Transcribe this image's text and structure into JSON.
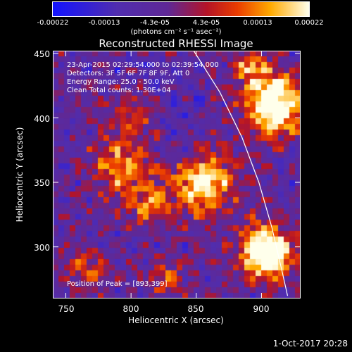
{
  "colorbar": {
    "ticks": [
      "-0.00022",
      "-0.00013",
      "-4.3e-05",
      "4.3e-05",
      "0.00013",
      "0.00022"
    ],
    "units": "(photons cm⁻² s⁻¹ asec⁻²)"
  },
  "chart_data": {
    "type": "heatmap",
    "title": "Reconstructed RHESSI Image",
    "xlabel": "Heliocentric X (arcsec)",
    "ylabel": "Heliocentric Y (arcsec)",
    "xlim": [
      740,
      930
    ],
    "ylim": [
      260,
      452
    ],
    "xticks": [
      "750",
      "800",
      "850",
      "900"
    ],
    "yticks": [
      "300",
      "350",
      "400",
      "450"
    ],
    "value_range": [
      -0.00022,
      0.00022
    ],
    "peak": [
      893,
      399
    ],
    "annotations": [
      "23-Apr-2015 02:29:54.000 to 02:39:54.000",
      "Detectors: 3F 5F 6F 7F 8F 9F, Att 0",
      "Energy Range: 25.0 - 50.0 keV",
      "Clean    Total counts: 1.30E+04",
      "Position of Peak = [893,399]"
    ],
    "limb_curve": [
      [
        848,
        452
      ],
      [
        868,
        420
      ],
      [
        885,
        385
      ],
      [
        898,
        350
      ],
      [
        908,
        315
      ],
      [
        916,
        280
      ],
      [
        920,
        262
      ]
    ]
  },
  "footer": {
    "date": "1-Oct-2017 20:28"
  }
}
